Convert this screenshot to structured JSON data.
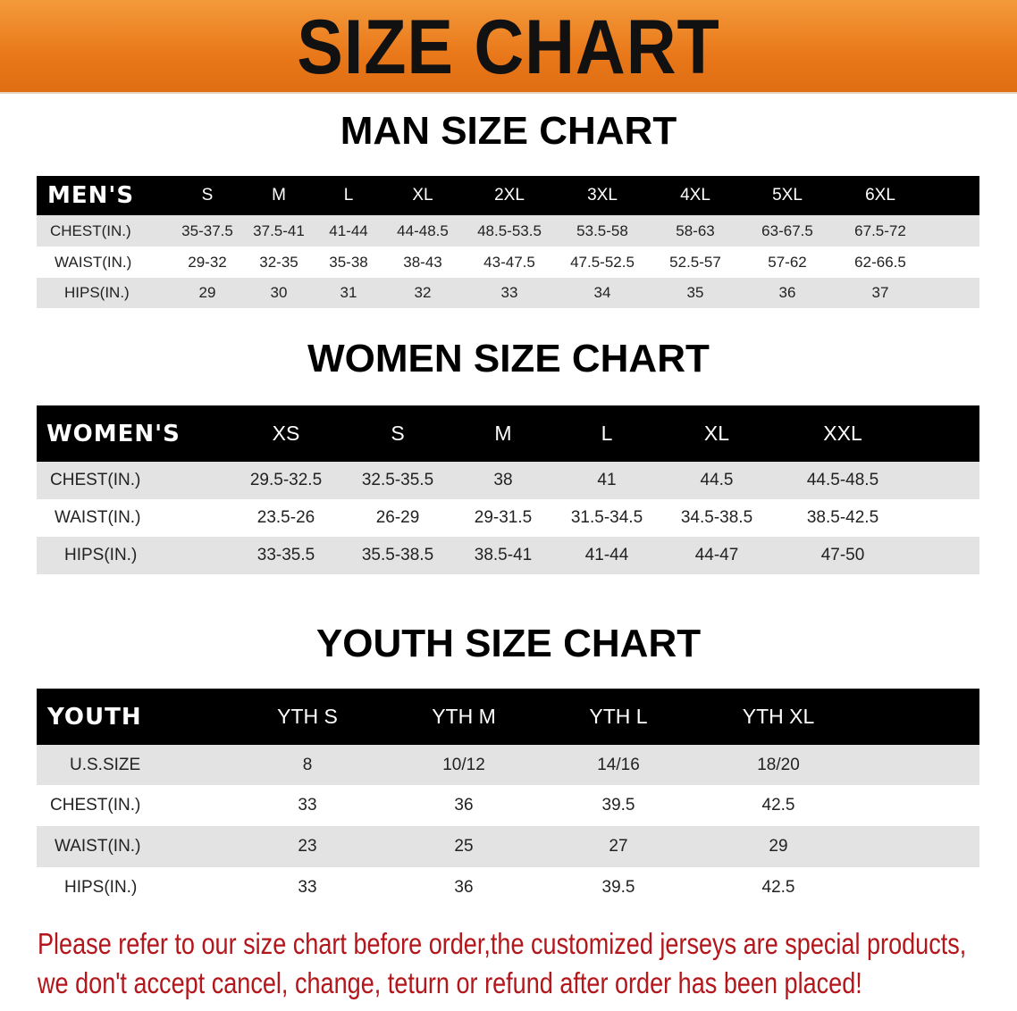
{
  "banner": {
    "title": "SIZE CHART",
    "color": "#ec8020"
  },
  "sections": {
    "men_title": "MAN SIZE CHART",
    "women_title": "WOMEN SIZE CHART",
    "youth_title": "YOUTH SIZE CHART"
  },
  "chart_data": [
    {
      "type": "table",
      "title": "MAN SIZE CHART",
      "header": [
        "MEN'S",
        "S",
        "M",
        "L",
        "XL",
        "2XL",
        "3XL",
        "4XL",
        "5XL",
        "6XL"
      ],
      "rows": [
        [
          "CHEST(IN.)",
          "35-37.5",
          "37.5-41",
          "41-44",
          "44-48.5",
          "48.5-53.5",
          "53.5-58",
          "58-63",
          "63-67.5",
          "67.5-72"
        ],
        [
          "WAIST(IN.)",
          "29-32",
          "32-35",
          "35-38",
          "38-43",
          "43-47.5",
          "47.5-52.5",
          "52.5-57",
          "57-62",
          "62-66.5"
        ],
        [
          "HIPS(IN.)",
          "29",
          "30",
          "31",
          "32",
          "33",
          "34",
          "35",
          "36",
          "37"
        ]
      ]
    },
    {
      "type": "table",
      "title": "WOMEN SIZE CHART",
      "header": [
        "WOMEN'S",
        "XS",
        "S",
        "M",
        "L",
        "XL",
        "XXL"
      ],
      "rows": [
        [
          "CHEST(IN.)",
          "29.5-32.5",
          "32.5-35.5",
          "38",
          "41",
          "44.5",
          "44.5-48.5"
        ],
        [
          "WAIST(IN.)",
          "23.5-26",
          "26-29",
          "29-31.5",
          "31.5-34.5",
          "34.5-38.5",
          "38.5-42.5"
        ],
        [
          "HIPS(IN.)",
          "33-35.5",
          "35.5-38.5",
          "38.5-41",
          "41-44",
          "44-47",
          "47-50"
        ]
      ]
    },
    {
      "type": "table",
      "title": "YOUTH SIZE CHART",
      "header": [
        "YOUTH",
        "YTH S",
        "YTH M",
        "YTH L",
        "YTH XL"
      ],
      "rows": [
        [
          "U.S.SIZE",
          "8",
          "10/12",
          "14/16",
          "18/20"
        ],
        [
          "CHEST(IN.)",
          "33",
          "36",
          "39.5",
          "42.5"
        ],
        [
          "WAIST(IN.)",
          "23",
          "25",
          "27",
          "29"
        ],
        [
          "HIPS(IN.)",
          "33",
          "36",
          "39.5",
          "42.5"
        ]
      ]
    }
  ],
  "note": {
    "line1": "Please refer to our size chart before order,the customized jerseys are special products,",
    "line2": "we don't accept cancel, change, teturn or refund after order has been placed!",
    "color": "#b3161b"
  }
}
